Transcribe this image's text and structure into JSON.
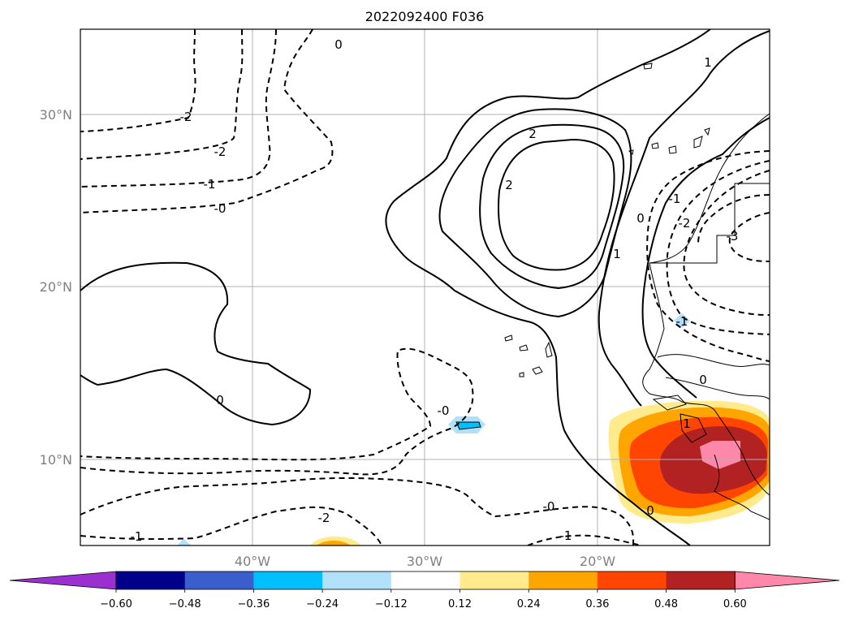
{
  "title": "2022092400 F036",
  "lat_labels": [
    "30°N",
    "20°N",
    "10°N"
  ],
  "lon_labels": [
    "40°W",
    "30°W",
    "20°W"
  ],
  "colorbar": {
    "ticks": [
      "−0.60",
      "−0.48",
      "−0.36",
      "−0.24",
      "−0.12",
      "0.12",
      "0.24",
      "0.36",
      "0.48",
      "0.60"
    ],
    "colors": [
      "#9b30d0",
      "#00008b",
      "#3a5fcd",
      "#00bfff",
      "#b0e0fa",
      "#ffffff",
      "#ffeb8c",
      "#ffa500",
      "#ff4500",
      "#b22222",
      "#ff88aa"
    ]
  },
  "contour_labels": [
    "0",
    "-2",
    "-2",
    "-1",
    "-0",
    "0",
    "2",
    "2",
    "1",
    "0",
    "1",
    "-1",
    "-2",
    "-3",
    "-1",
    "0",
    "-0",
    "-2",
    "-1",
    "-0",
    "-1",
    "1",
    "0"
  ]
}
